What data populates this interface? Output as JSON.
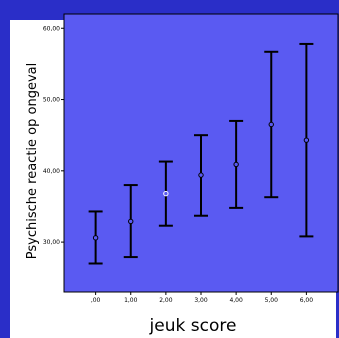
{
  "chart_data": {
    "type": "scatter",
    "subtype": "error-bar",
    "xlabel": "jeuk score",
    "ylabel": "Psychische reactie op ongeval",
    "x_tick_labels": [
      ",00",
      "1,00",
      "2,00",
      "3,00",
      "4,00",
      "5,00",
      "6,00"
    ],
    "y_tick_labels": [
      "30,00",
      "40,00",
      "50,00",
      "60,00"
    ],
    "y_tick_values": [
      30,
      40,
      50,
      60
    ],
    "xlim": [
      -0.9,
      6.9
    ],
    "ylim": [
      23,
      62
    ],
    "grid": false,
    "points": [
      {
        "x": 0,
        "mean": 30.6,
        "lower": 27.0,
        "upper": 34.3
      },
      {
        "x": 1,
        "mean": 32.9,
        "lower": 27.9,
        "upper": 38.0
      },
      {
        "x": 2,
        "mean": 36.8,
        "lower": 32.3,
        "upper": 41.3
      },
      {
        "x": 3,
        "mean": 39.4,
        "lower": 33.7,
        "upper": 45.0
      },
      {
        "x": 4,
        "mean": 40.9,
        "lower": 34.8,
        "upper": 47.0
      },
      {
        "x": 5,
        "mean": 46.5,
        "lower": 36.3,
        "upper": 56.7
      },
      {
        "x": 6,
        "mean": 44.3,
        "lower": 30.8,
        "upper": 57.8
      }
    ],
    "colors": {
      "plot_background": "#5a5af2",
      "bars": "#000000",
      "highlighted_marker": "#ffffff",
      "frame_band": "#2a2ec8"
    },
    "highlighted_index": 2
  }
}
